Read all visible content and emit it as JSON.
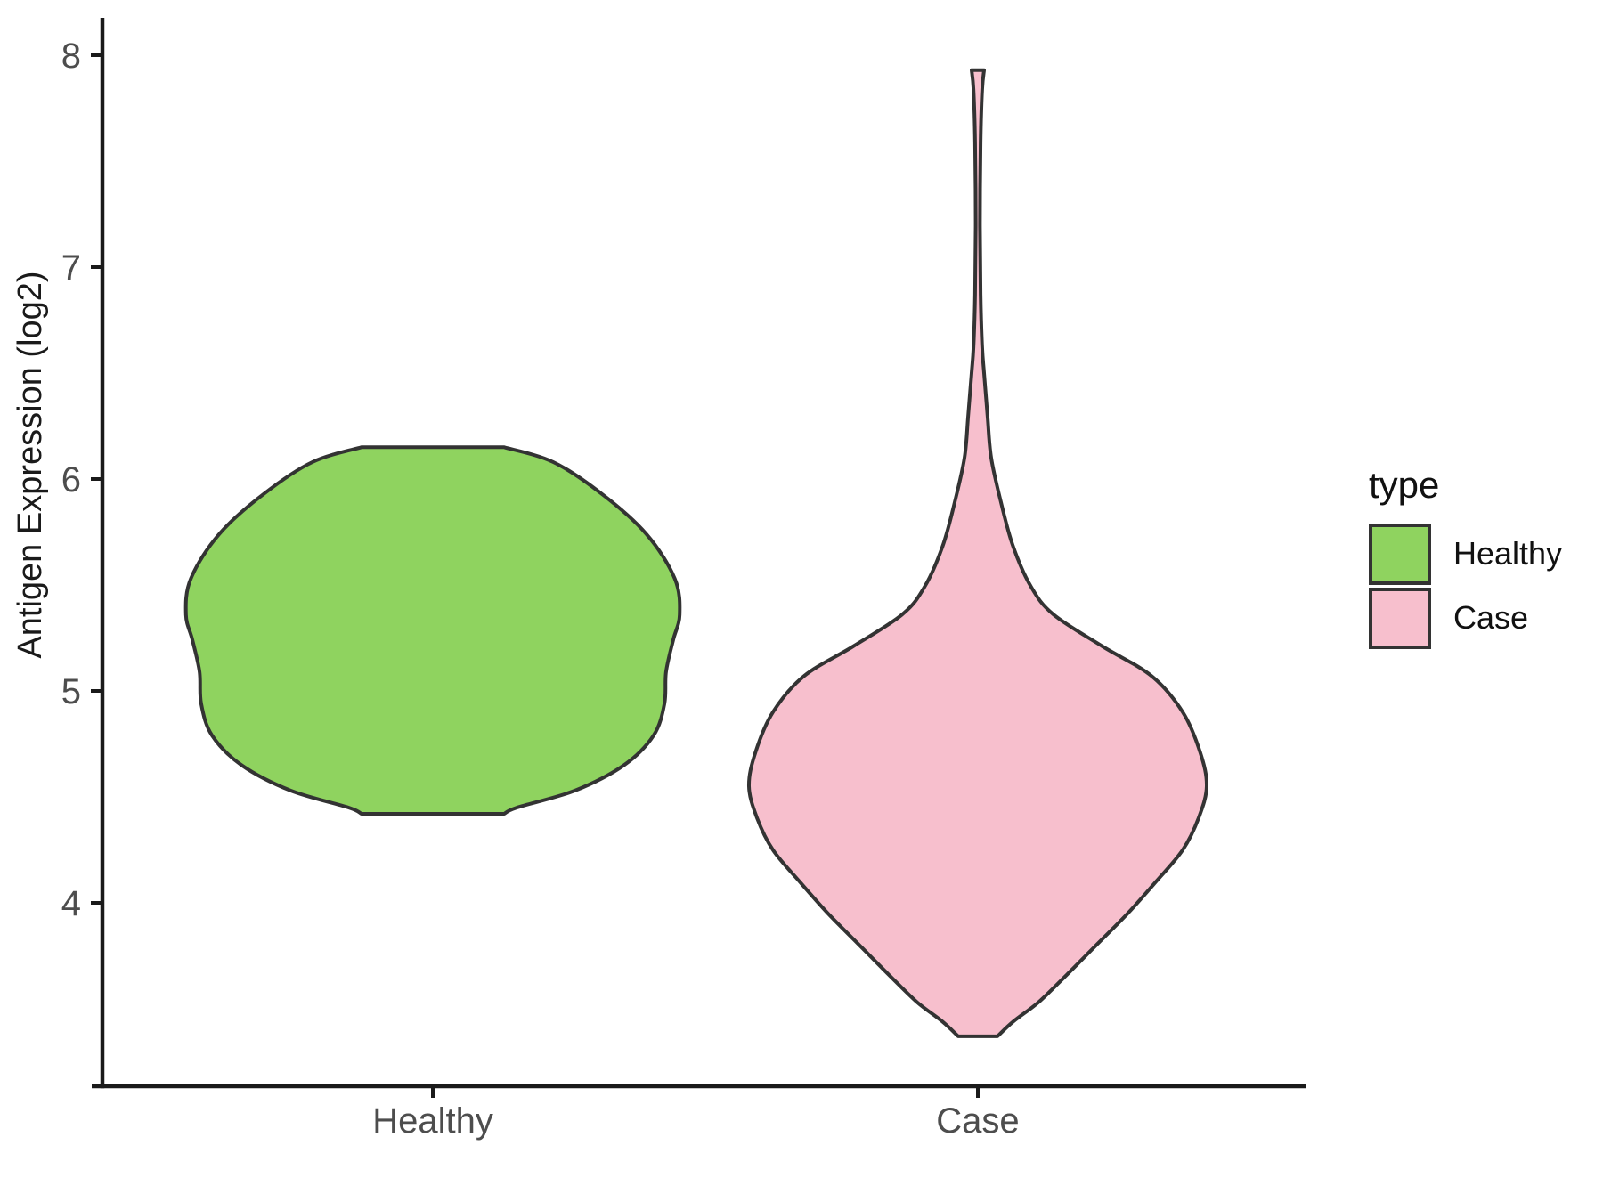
{
  "figure": {
    "background": "#ffffff"
  },
  "legend": {
    "title": "type",
    "position": "right",
    "items": [
      {
        "label": "Healthy",
        "color": "#8fd35f",
        "outline": "#333333"
      },
      {
        "label": "Case",
        "color": "#f7bfcd",
        "outline": "#333333"
      }
    ]
  },
  "chart_data": {
    "type": "violin",
    "title": "",
    "xlabel": "",
    "ylabel": "Antigen Expression (log2)",
    "categories": [
      "Healthy",
      "Case"
    ],
    "y_ticks": [
      4,
      5,
      6,
      7,
      8
    ],
    "ylim": [
      3.2,
      8.15
    ],
    "grid": false,
    "legend_title": "type",
    "legend_position": "right",
    "axis_color": "#1a1a1a",
    "tick_text_color": "#4d4d4d",
    "series": [
      {
        "name": "Healthy",
        "color": "#8fd35f",
        "outline": "#333333",
        "value_range": [
          4.42,
          6.15
        ],
        "peak_value": 5.4,
        "profile": [
          [
            6.15,
            0.131
          ],
          [
            6.08,
            0.221
          ],
          [
            5.93,
            0.31
          ],
          [
            5.74,
            0.392
          ],
          [
            5.53,
            0.444
          ],
          [
            5.36,
            0.453
          ],
          [
            5.24,
            0.441
          ],
          [
            5.09,
            0.428
          ],
          [
            4.94,
            0.425
          ],
          [
            4.79,
            0.405
          ],
          [
            4.65,
            0.351
          ],
          [
            4.53,
            0.261
          ],
          [
            4.45,
            0.155
          ],
          [
            4.42,
            0.131
          ]
        ]
      },
      {
        "name": "Case",
        "color": "#f7bfcd",
        "outline": "#333333",
        "value_range": [
          3.37,
          7.93
        ],
        "peak_value": 4.55,
        "profile": [
          [
            7.93,
            0.0115
          ],
          [
            7.84,
            0.008
          ],
          [
            7.59,
            0.005
          ],
          [
            7.21,
            0.004
          ],
          [
            6.87,
            0.005
          ],
          [
            6.62,
            0.008
          ],
          [
            6.5,
            0.0115
          ],
          [
            6.29,
            0.018
          ],
          [
            6.1,
            0.0245
          ],
          [
            5.89,
            0.0425
          ],
          [
            5.68,
            0.065
          ],
          [
            5.49,
            0.098
          ],
          [
            5.36,
            0.139
          ],
          [
            5.21,
            0.229
          ],
          [
            5.07,
            0.319
          ],
          [
            4.9,
            0.376
          ],
          [
            4.71,
            0.408
          ],
          [
            4.55,
            0.42
          ],
          [
            4.4,
            0.405
          ],
          [
            4.25,
            0.376
          ],
          [
            4.1,
            0.327
          ],
          [
            3.95,
            0.275
          ],
          [
            3.81,
            0.221
          ],
          [
            3.66,
            0.163
          ],
          [
            3.53,
            0.111
          ],
          [
            3.44,
            0.065
          ],
          [
            3.37,
            0.036
          ]
        ]
      }
    ]
  }
}
